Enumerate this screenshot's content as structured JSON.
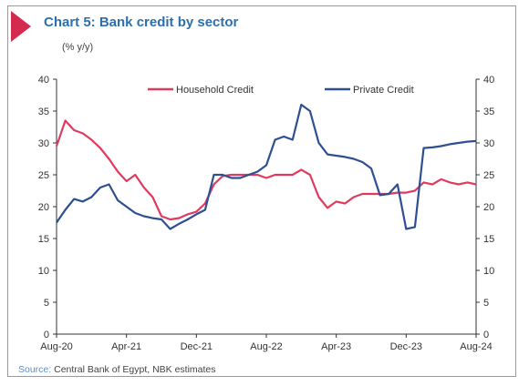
{
  "header": {
    "title": "Chart 5: Bank credit by sector",
    "subtitle": "(% y/y)"
  },
  "footer": {
    "source_label": "Source:",
    "source_text": "Central Bank of Egypt, NBK estimates"
  },
  "colors": {
    "accent": "#d42a4e",
    "title": "#2d6fae",
    "household": "#e03a5e",
    "private": "#2e4f91"
  },
  "chart_data": {
    "type": "line",
    "title": "Chart 5: Bank credit by sector",
    "ylabel": "(% y/y)",
    "xlabel": "",
    "ylim": [
      0,
      40
    ],
    "yticks": [
      0,
      5,
      10,
      15,
      20,
      25,
      30,
      35,
      40
    ],
    "grid": false,
    "legend_position": "top",
    "x_tick_labels": [
      "Aug-20",
      "Apr-21",
      "Dec-21",
      "Aug-22",
      "Apr-23",
      "Dec-23",
      "Aug-24"
    ],
    "x": [
      "Aug-20",
      "Sep-20",
      "Oct-20",
      "Nov-20",
      "Dec-20",
      "Jan-21",
      "Feb-21",
      "Mar-21",
      "Apr-21",
      "May-21",
      "Jun-21",
      "Jul-21",
      "Aug-21",
      "Sep-21",
      "Oct-21",
      "Nov-21",
      "Dec-21",
      "Jan-22",
      "Feb-22",
      "Mar-22",
      "Apr-22",
      "May-22",
      "Jun-22",
      "Jul-22",
      "Aug-22",
      "Sep-22",
      "Oct-22",
      "Nov-22",
      "Dec-22",
      "Jan-23",
      "Feb-23",
      "Mar-23",
      "Apr-23",
      "May-23",
      "Jun-23",
      "Jul-23",
      "Aug-23",
      "Sep-23",
      "Oct-23",
      "Nov-23",
      "Dec-23",
      "Jan-24",
      "Feb-24",
      "Mar-24",
      "Apr-24",
      "May-24",
      "Jun-24",
      "Jul-24",
      "Aug-24"
    ],
    "series": [
      {
        "name": "Household Credit",
        "axis": "left",
        "values": [
          29.5,
          33.5,
          32,
          31.5,
          30.5,
          29.2,
          27.5,
          25.5,
          24,
          25,
          23,
          21.5,
          18.5,
          18,
          18.2,
          18.8,
          19.2,
          20.5,
          23.5,
          24.8,
          25,
          25,
          25,
          25,
          24.5,
          25,
          25,
          25,
          25.8,
          25,
          21.5,
          19.8,
          20.8,
          20.5,
          21.5,
          22,
          22,
          22,
          22,
          22.2,
          22.2,
          22.5,
          23.8,
          23.5,
          24.3,
          23.8,
          23.5,
          23.8,
          23.5
        ]
      },
      {
        "name": "Private Credit",
        "axis": "right",
        "values": [
          17.5,
          19.5,
          21.2,
          20.8,
          21.5,
          23,
          23.5,
          21,
          20,
          19,
          18.5,
          18.2,
          18,
          16.5,
          17.3,
          18,
          18.8,
          19.5,
          25,
          25,
          24.5,
          24.5,
          25,
          25.5,
          26.5,
          30.5,
          31,
          30.5,
          36,
          35,
          30,
          28.2,
          28,
          27.8,
          27.5,
          27,
          26,
          21.8,
          22,
          23.5,
          16.5,
          16.8,
          29.2,
          29.3,
          29.5,
          29.8,
          30,
          30.2,
          30.3
        ]
      }
    ],
    "right_axis": {
      "ylim": [
        0,
        40
      ],
      "yticks": [
        0,
        5,
        10,
        15,
        20,
        25,
        30,
        35,
        40
      ]
    }
  }
}
